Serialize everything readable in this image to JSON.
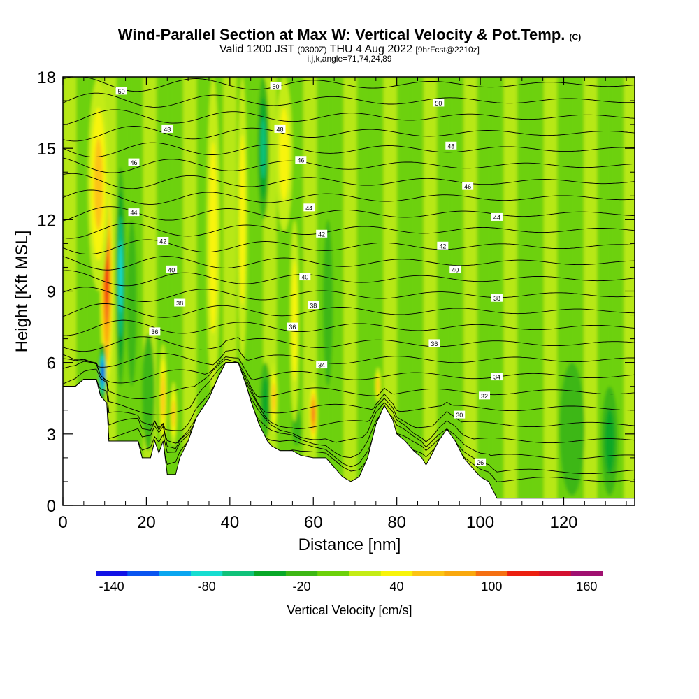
{
  "header": {
    "title": "Wind-Parallel Section at Max W: Vertical Velocity & Pot.Temp.",
    "copyright_mark": "(C)",
    "valid_prefix": "Valid 1200 JST",
    "valid_utc": "(0300Z)",
    "valid_date": "THU 4 Aug 2022",
    "forecast_tag": "[9hrFcst@2210z]",
    "indices": "i,j,k,angle=71,74,24,89"
  },
  "colors": {
    "terrain": "#ffffff",
    "background": "#ffffff",
    "contour": "#000000"
  },
  "chart_data": {
    "type": "heatmap",
    "xlabel": "Distance [nm]",
    "ylabel": "Height [Kft MSL]",
    "xlim": [
      0,
      137
    ],
    "ylim": [
      0,
      18
    ],
    "x_ticks": [
      "0",
      "20",
      "40",
      "60",
      "80",
      "100",
      "120"
    ],
    "y_ticks": [
      "0",
      "3",
      "6",
      "9",
      "12",
      "15",
      "18"
    ],
    "colorbar": {
      "label": "Vertical Velocity [cm/s]",
      "tick_labels": [
        "-140",
        "-80",
        "-20",
        "40",
        "100",
        "160"
      ],
      "bin_width": 20,
      "range": [
        -150,
        170
      ],
      "colors": [
        "#1212e6",
        "#0a55f0",
        "#0aa6f0",
        "#16ddd0",
        "#10c27a",
        "#08a828",
        "#3db714",
        "#6dd10a",
        "#c4ec14",
        "#f8f40a",
        "#fcc414",
        "#f9a80e",
        "#f57012",
        "#ec2010",
        "#d41030",
        "#a01070"
      ]
    },
    "terrain_height_kft": [
      [
        0,
        5.0
      ],
      [
        3,
        5.0
      ],
      [
        5,
        5.3
      ],
      [
        8,
        5.3
      ],
      [
        9,
        4.6
      ],
      [
        10.5,
        4.3
      ],
      [
        11,
        2.7
      ],
      [
        14,
        2.7
      ],
      [
        18,
        2.7
      ],
      [
        19,
        2.0
      ],
      [
        21,
        2.0
      ],
      [
        22,
        2.7
      ],
      [
        23,
        2.2
      ],
      [
        24,
        2.7
      ],
      [
        25,
        1.3
      ],
      [
        27,
        1.3
      ],
      [
        28,
        2.0
      ],
      [
        30,
        2.7
      ],
      [
        32,
        3.7
      ],
      [
        35,
        4.5
      ],
      [
        37,
        5.3
      ],
      [
        39,
        6.0
      ],
      [
        42,
        6.0
      ],
      [
        44,
        5.0
      ],
      [
        45,
        4.4
      ],
      [
        47,
        3.4
      ],
      [
        49,
        2.7
      ],
      [
        50,
        2.5
      ],
      [
        52,
        2.3
      ],
      [
        55,
        2.3
      ],
      [
        57,
        2.1
      ],
      [
        60,
        2.0
      ],
      [
        63,
        2.0
      ],
      [
        65,
        1.6
      ],
      [
        67,
        1.2
      ],
      [
        69,
        1.0
      ],
      [
        71,
        1.2
      ],
      [
        73,
        2.0
      ],
      [
        75,
        3.4
      ],
      [
        77,
        4.2
      ],
      [
        79,
        3.6
      ],
      [
        80,
        3.0
      ],
      [
        82,
        2.7
      ],
      [
        84,
        2.3
      ],
      [
        86,
        2.0
      ],
      [
        87,
        1.7
      ],
      [
        88,
        2.0
      ],
      [
        90,
        2.7
      ],
      [
        92,
        3.2
      ],
      [
        94,
        2.7
      ],
      [
        96,
        2.0
      ],
      [
        98,
        1.6
      ],
      [
        100,
        1.2
      ],
      [
        102,
        1.0
      ],
      [
        104,
        0.3
      ],
      [
        120,
        0.3
      ],
      [
        137,
        0.3
      ]
    ],
    "pot_temp_contour_labels": [
      {
        "value": "50",
        "at": [
          14,
          17.4
        ]
      },
      {
        "value": "48",
        "at": [
          25,
          15.8
        ]
      },
      {
        "value": "46",
        "at": [
          17,
          14.4
        ]
      },
      {
        "value": "44",
        "at": [
          17,
          12.3
        ]
      },
      {
        "value": "42",
        "at": [
          24,
          11.1
        ]
      },
      {
        "value": "40",
        "at": [
          26,
          9.9
        ]
      },
      {
        "value": "38",
        "at": [
          28,
          8.5
        ]
      },
      {
        "value": "36",
        "at": [
          22,
          7.3
        ]
      },
      {
        "value": "50",
        "at": [
          51,
          17.6
        ]
      },
      {
        "value": "48",
        "at": [
          52,
          15.8
        ]
      },
      {
        "value": "46",
        "at": [
          57,
          14.5
        ]
      },
      {
        "value": "44",
        "at": [
          59,
          12.5
        ]
      },
      {
        "value": "42",
        "at": [
          62,
          11.4
        ]
      },
      {
        "value": "40",
        "at": [
          58,
          9.6
        ]
      },
      {
        "value": "38",
        "at": [
          60,
          8.4
        ]
      },
      {
        "value": "36",
        "at": [
          55,
          7.5
        ]
      },
      {
        "value": "34",
        "at": [
          62,
          5.9
        ]
      },
      {
        "value": "50",
        "at": [
          90,
          16.9
        ]
      },
      {
        "value": "48",
        "at": [
          93,
          15.1
        ]
      },
      {
        "value": "46",
        "at": [
          97,
          13.4
        ]
      },
      {
        "value": "44",
        "at": [
          104,
          12.1
        ]
      },
      {
        "value": "42",
        "at": [
          91,
          10.9
        ]
      },
      {
        "value": "40",
        "at": [
          94,
          9.9
        ]
      },
      {
        "value": "38",
        "at": [
          104,
          8.7
        ]
      },
      {
        "value": "36",
        "at": [
          89,
          6.8
        ]
      },
      {
        "value": "34",
        "at": [
          104,
          5.4
        ]
      },
      {
        "value": "32",
        "at": [
          101,
          4.6
        ]
      },
      {
        "value": "30",
        "at": [
          95,
          3.8
        ]
      },
      {
        "value": "26",
        "at": [
          100,
          1.8
        ]
      }
    ],
    "vertical_velocity_features": [
      {
        "x": 10.5,
        "bottom": 4.5,
        "top": 14.5,
        "width": 1.6,
        "w_max": 110
      },
      {
        "x": 13.8,
        "bottom": 5.0,
        "top": 14.2,
        "width": 1.2,
        "w_max": -80
      },
      {
        "x": 9.5,
        "bottom": 4.3,
        "top": 6.8,
        "width": 0.9,
        "w_max": -140
      },
      {
        "x": 8.5,
        "bottom": 9.0,
        "top": 18.0,
        "width": 2.5,
        "w_max": 55
      },
      {
        "x": 16.5,
        "bottom": 5.0,
        "top": 12.0,
        "width": 1.2,
        "w_max": -20
      },
      {
        "x": 24.0,
        "bottom": 2.3,
        "top": 6.8,
        "width": 0.9,
        "w_max": 60
      },
      {
        "x": 26.5,
        "bottom": 2.5,
        "top": 5.2,
        "width": 0.8,
        "w_max": 55
      },
      {
        "x": 20.5,
        "bottom": 2.3,
        "top": 7.2,
        "width": 1.5,
        "w_max": -25
      },
      {
        "x": 36.0,
        "bottom": 4.5,
        "top": 18.0,
        "width": 1.6,
        "w_max": 30
      },
      {
        "x": 43.0,
        "bottom": 6.0,
        "top": 18.0,
        "width": 1.2,
        "w_max": 45
      },
      {
        "x": 48.5,
        "bottom": 2.8,
        "top": 6.0,
        "width": 1.3,
        "w_max": -35
      },
      {
        "x": 48.0,
        "bottom": 12.0,
        "top": 18.0,
        "width": 1.4,
        "w_max": -65
      },
      {
        "x": 50.5,
        "bottom": 3.0,
        "top": 6.0,
        "width": 0.9,
        "w_max": 55
      },
      {
        "x": 53.0,
        "bottom": 11.5,
        "top": 18.0,
        "width": 2.0,
        "w_max": 40
      },
      {
        "x": 60.0,
        "bottom": 2.5,
        "top": 5.2,
        "width": 1.0,
        "w_max": 95
      },
      {
        "x": 56.0,
        "bottom": 2.5,
        "top": 4.0,
        "width": 1.1,
        "w_max": -25
      },
      {
        "x": 55.5,
        "bottom": 3.5,
        "top": 12.0,
        "width": 1.1,
        "w_max": 40
      },
      {
        "x": 75.5,
        "bottom": 4.3,
        "top": 5.8,
        "width": 0.7,
        "w_max": 65
      },
      {
        "x": 63.5,
        "bottom": 5.0,
        "top": 12.0,
        "width": 1.2,
        "w_max": -10
      },
      {
        "x": 122.0,
        "bottom": 0.4,
        "top": 6.0,
        "width": 3.0,
        "w_max": -12
      },
      {
        "x": 131.0,
        "bottom": 0.4,
        "top": 5.0,
        "width": 2.0,
        "w_max": -30
      }
    ]
  }
}
